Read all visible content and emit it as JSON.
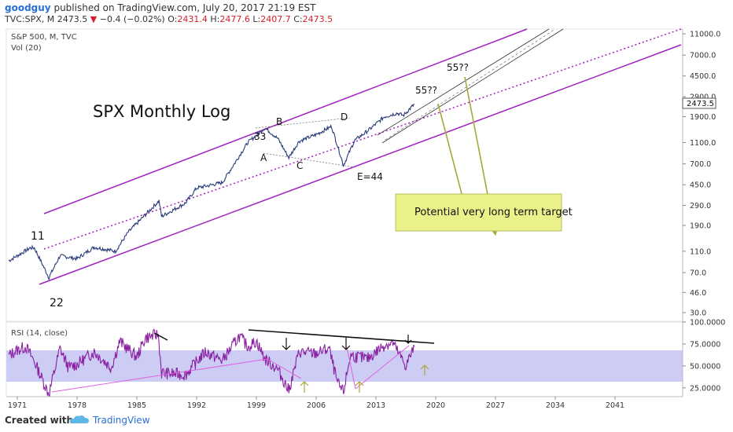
{
  "header": {
    "user": "goodguy",
    "published": "published on TradingView.com, July 20, 2017 21:19 EST",
    "symbol": "TVC:SPX, M",
    "last": "2473.5",
    "change_arrow": "▼",
    "change": "−0.4 (−0.02%)",
    "o_label": "O:",
    "o": "2431.4",
    "h_label": "H:",
    "h": "2477.6",
    "l_label": "L:",
    "l": "2407.7",
    "c_label": "C:",
    "c": "2473.5"
  },
  "chart": {
    "legend_main": "S&P 500, M, TVC",
    "legend_vol": "Vol (20)",
    "title": "SPX Monthly Log",
    "target_box_text": "Potential very long term target",
    "price_badge": "2473.5",
    "rsi_label": "RSI (14, close)",
    "labels": {
      "eleven": "11",
      "twentytwo": "22",
      "thirtythree": "33",
      "a": "A",
      "b": "B",
      "c": "C",
      "d": "D",
      "e44": "E=44",
      "fiftyfive1": "55??",
      "fiftyfive2": "55??"
    },
    "colors": {
      "channel": "#a020c0",
      "target_box": "#eaf08a",
      "arrow": "#a8a83a",
      "rsi_band": "#ccccf5",
      "price": "#2a3b7a",
      "rsi_line": "#8a1fa0"
    }
  },
  "chart_data": [
    {
      "type": "line",
      "title": "SPX Monthly Log",
      "scale": "log",
      "y_ticks": [
        "11000.0",
        "7000.0",
        "4500.0",
        "2900.0",
        "1900.0",
        "1100.0",
        "700.0",
        "450.0",
        "290.0",
        "190.0",
        "110.0",
        "70.0",
        "46.0",
        "30.0"
      ],
      "x_ticks": [
        "1971",
        "1978",
        "1985",
        "1992",
        "1999",
        "2006",
        "2013",
        "2020",
        "2027",
        "2034",
        "2041"
      ],
      "series": [
        {
          "x": [
            1970.0,
            1971.0,
            1972.5,
            1973.0,
            1974.7,
            1976.0,
            1978.0,
            1980.0,
            1982.5,
            1984.0,
            1987.6,
            1987.9,
            1990.7,
            1992.0,
            1995.0,
            1998.0,
            2000.0,
            2001.5,
            2002.8,
            2004.0,
            2006.0,
            2007.8,
            2009.2,
            2010.5,
            2012.0,
            2014.0,
            2015.5,
            2016.2,
            2017.5
          ],
          "y": [
            90,
            100,
            118,
            118,
            63,
            100,
            94,
            120,
            110,
            165,
            320,
            230,
            305,
            420,
            470,
            1100,
            1500,
            1200,
            800,
            1130,
            1300,
            1550,
            680,
            1150,
            1400,
            1900,
            2050,
            1950,
            2473
          ]
        }
      ]
    },
    {
      "type": "line",
      "title": "RSI (14, close)",
      "y_ticks": [
        "100.0000",
        "75.0000",
        "50.0000",
        "25.0000"
      ],
      "ylim": [
        15,
        100
      ],
      "series": [
        {
          "x": [
            1970,
            1971,
            1972,
            1973,
            1974.7,
            1976,
            1977,
            1978,
            1980,
            1982,
            1983,
            1985,
            1986,
            1987.5,
            1987.9,
            1990.7,
            1993,
            1995,
            1997,
            1998,
            1999,
            2000,
            2001.5,
            2002.8,
            2004,
            2006,
            2007.5,
            2008.5,
            2009.2,
            2010,
            2012,
            2014,
            2015,
            2016,
            2016.5,
            2017.5
          ],
          "y": [
            62,
            68,
            72,
            55,
            18,
            70,
            48,
            52,
            66,
            48,
            78,
            60,
            82,
            86,
            42,
            40,
            66,
            56,
            84,
            72,
            78,
            58,
            46,
            22,
            66,
            64,
            70,
            30,
            20,
            62,
            58,
            74,
            76,
            58,
            50,
            72
          ]
        }
      ]
    }
  ]
}
